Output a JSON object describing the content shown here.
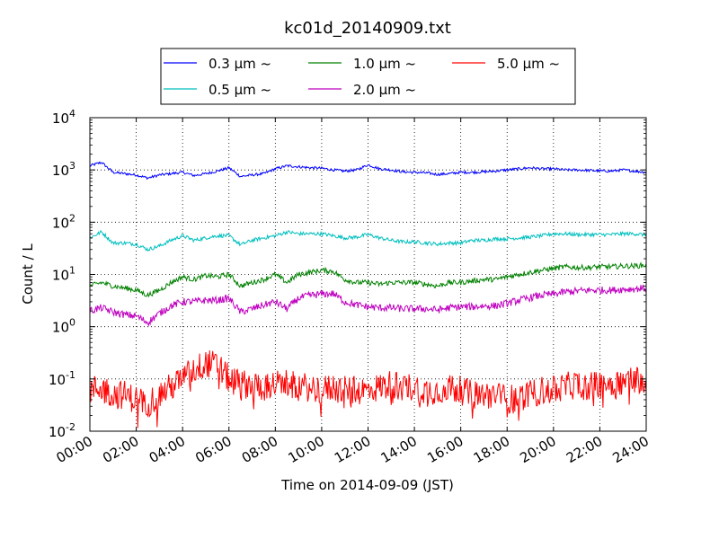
{
  "chart_data": {
    "type": "line",
    "title": "kc01d_20140909.txt",
    "xlabel": "Time on 2014-09-09 (JST)",
    "ylabel": "Count / L",
    "x_range_hours": [
      0,
      24
    ],
    "y_scale": "log",
    "ylim": [
      0.01,
      10000
    ],
    "grid": true,
    "legend_position": "top-center",
    "x_tick_labels": [
      "00:00",
      "02:00",
      "04:00",
      "06:00",
      "08:00",
      "10:00",
      "12:00",
      "14:00",
      "16:00",
      "18:00",
      "20:00",
      "22:00",
      "24:00"
    ],
    "y_ticks": [
      {
        "mantissa": "10",
        "exponent": "-2"
      },
      {
        "mantissa": "10",
        "exponent": "-1"
      },
      {
        "mantissa": "10",
        "exponent": "0"
      },
      {
        "mantissa": "10",
        "exponent": "1"
      },
      {
        "mantissa": "10",
        "exponent": "2"
      },
      {
        "mantissa": "10",
        "exponent": "3"
      },
      {
        "mantissa": "10",
        "exponent": "4"
      }
    ],
    "x_hours": [
      0,
      0.5,
      1,
      1.5,
      2,
      2.5,
      3,
      3.5,
      4,
      4.5,
      5,
      5.5,
      6,
      6.5,
      7,
      7.5,
      8,
      8.5,
      9,
      9.5,
      10,
      10.5,
      11,
      11.5,
      12,
      12.5,
      13,
      13.5,
      14,
      14.5,
      15,
      15.5,
      16,
      16.5,
      17,
      17.5,
      18,
      18.5,
      19,
      19.5,
      20,
      20.5,
      21,
      21.5,
      22,
      22.5,
      23,
      23.5,
      24
    ],
    "series": [
      {
        "name": "0.3 μm ~",
        "color": "#0000ff",
        "values": [
          1200,
          1400,
          900,
          850,
          800,
          700,
          800,
          850,
          900,
          780,
          850,
          950,
          1100,
          750,
          800,
          850,
          1050,
          1200,
          1150,
          1100,
          1080,
          1000,
          950,
          1000,
          1250,
          1050,
          1000,
          920,
          900,
          880,
          820,
          850,
          900,
          900,
          920,
          950,
          1000,
          1050,
          1100,
          1050,
          1050,
          1000,
          1000,
          980,
          960,
          950,
          1000,
          950,
          900
        ],
        "noise": 0.025
      },
      {
        "name": "0.5 μm ~",
        "color": "#00bfbf",
        "values": [
          50,
          65,
          40,
          40,
          38,
          30,
          35,
          45,
          55,
          45,
          50,
          55,
          55,
          37,
          45,
          50,
          55,
          65,
          60,
          60,
          60,
          55,
          50,
          52,
          58,
          50,
          45,
          42,
          42,
          40,
          38,
          40,
          40,
          45,
          45,
          48,
          48,
          50,
          52,
          55,
          60,
          60,
          58,
          58,
          58,
          58,
          60,
          60,
          57
        ],
        "noise": 0.035
      },
      {
        "name": "1.0 μm ~",
        "color": "#008000",
        "values": [
          6,
          7,
          6,
          5.5,
          5,
          4,
          5,
          7,
          9,
          8,
          9.5,
          9,
          10,
          6,
          7,
          8,
          10,
          7,
          10,
          11,
          12,
          11.5,
          8,
          7,
          7,
          6.5,
          7,
          7,
          7,
          6.5,
          6,
          7,
          7,
          7.5,
          8,
          8,
          9,
          10,
          11,
          12,
          13,
          14,
          13.5,
          13.5,
          14,
          14,
          14.5,
          14.5,
          15
        ],
        "noise": 0.05
      },
      {
        "name": "2.0 μm ~",
        "color": "#bf00bf",
        "values": [
          2,
          2.3,
          1.9,
          1.7,
          1.6,
          1.2,
          1.8,
          2.5,
          3,
          3,
          3.2,
          3.2,
          3.5,
          1.9,
          2.2,
          2.6,
          3,
          2.2,
          3.5,
          4,
          4.2,
          4.3,
          3,
          2.6,
          2.4,
          2.3,
          2.3,
          2.2,
          2.2,
          2.2,
          2.1,
          2.3,
          2.4,
          2.4,
          2.5,
          2.5,
          2.8,
          3.2,
          3.6,
          4,
          4.2,
          4.6,
          4.8,
          5,
          5,
          5,
          5.2,
          5.3,
          5.5
        ],
        "noise": 0.07
      },
      {
        "name": "5.0 μm ~",
        "color": "#ff0000",
        "values": [
          0.06,
          0.07,
          0.05,
          0.05,
          0.04,
          0.035,
          0.05,
          0.07,
          0.1,
          0.15,
          0.2,
          0.18,
          0.1,
          0.08,
          0.08,
          0.07,
          0.08,
          0.08,
          0.07,
          0.07,
          0.06,
          0.07,
          0.06,
          0.06,
          0.06,
          0.07,
          0.08,
          0.07,
          0.07,
          0.06,
          0.06,
          0.07,
          0.06,
          0.05,
          0.05,
          0.05,
          0.04,
          0.045,
          0.05,
          0.06,
          0.06,
          0.07,
          0.08,
          0.07,
          0.08,
          0.08,
          0.09,
          0.1,
          0.1
        ],
        "noise": 0.28
      }
    ]
  }
}
